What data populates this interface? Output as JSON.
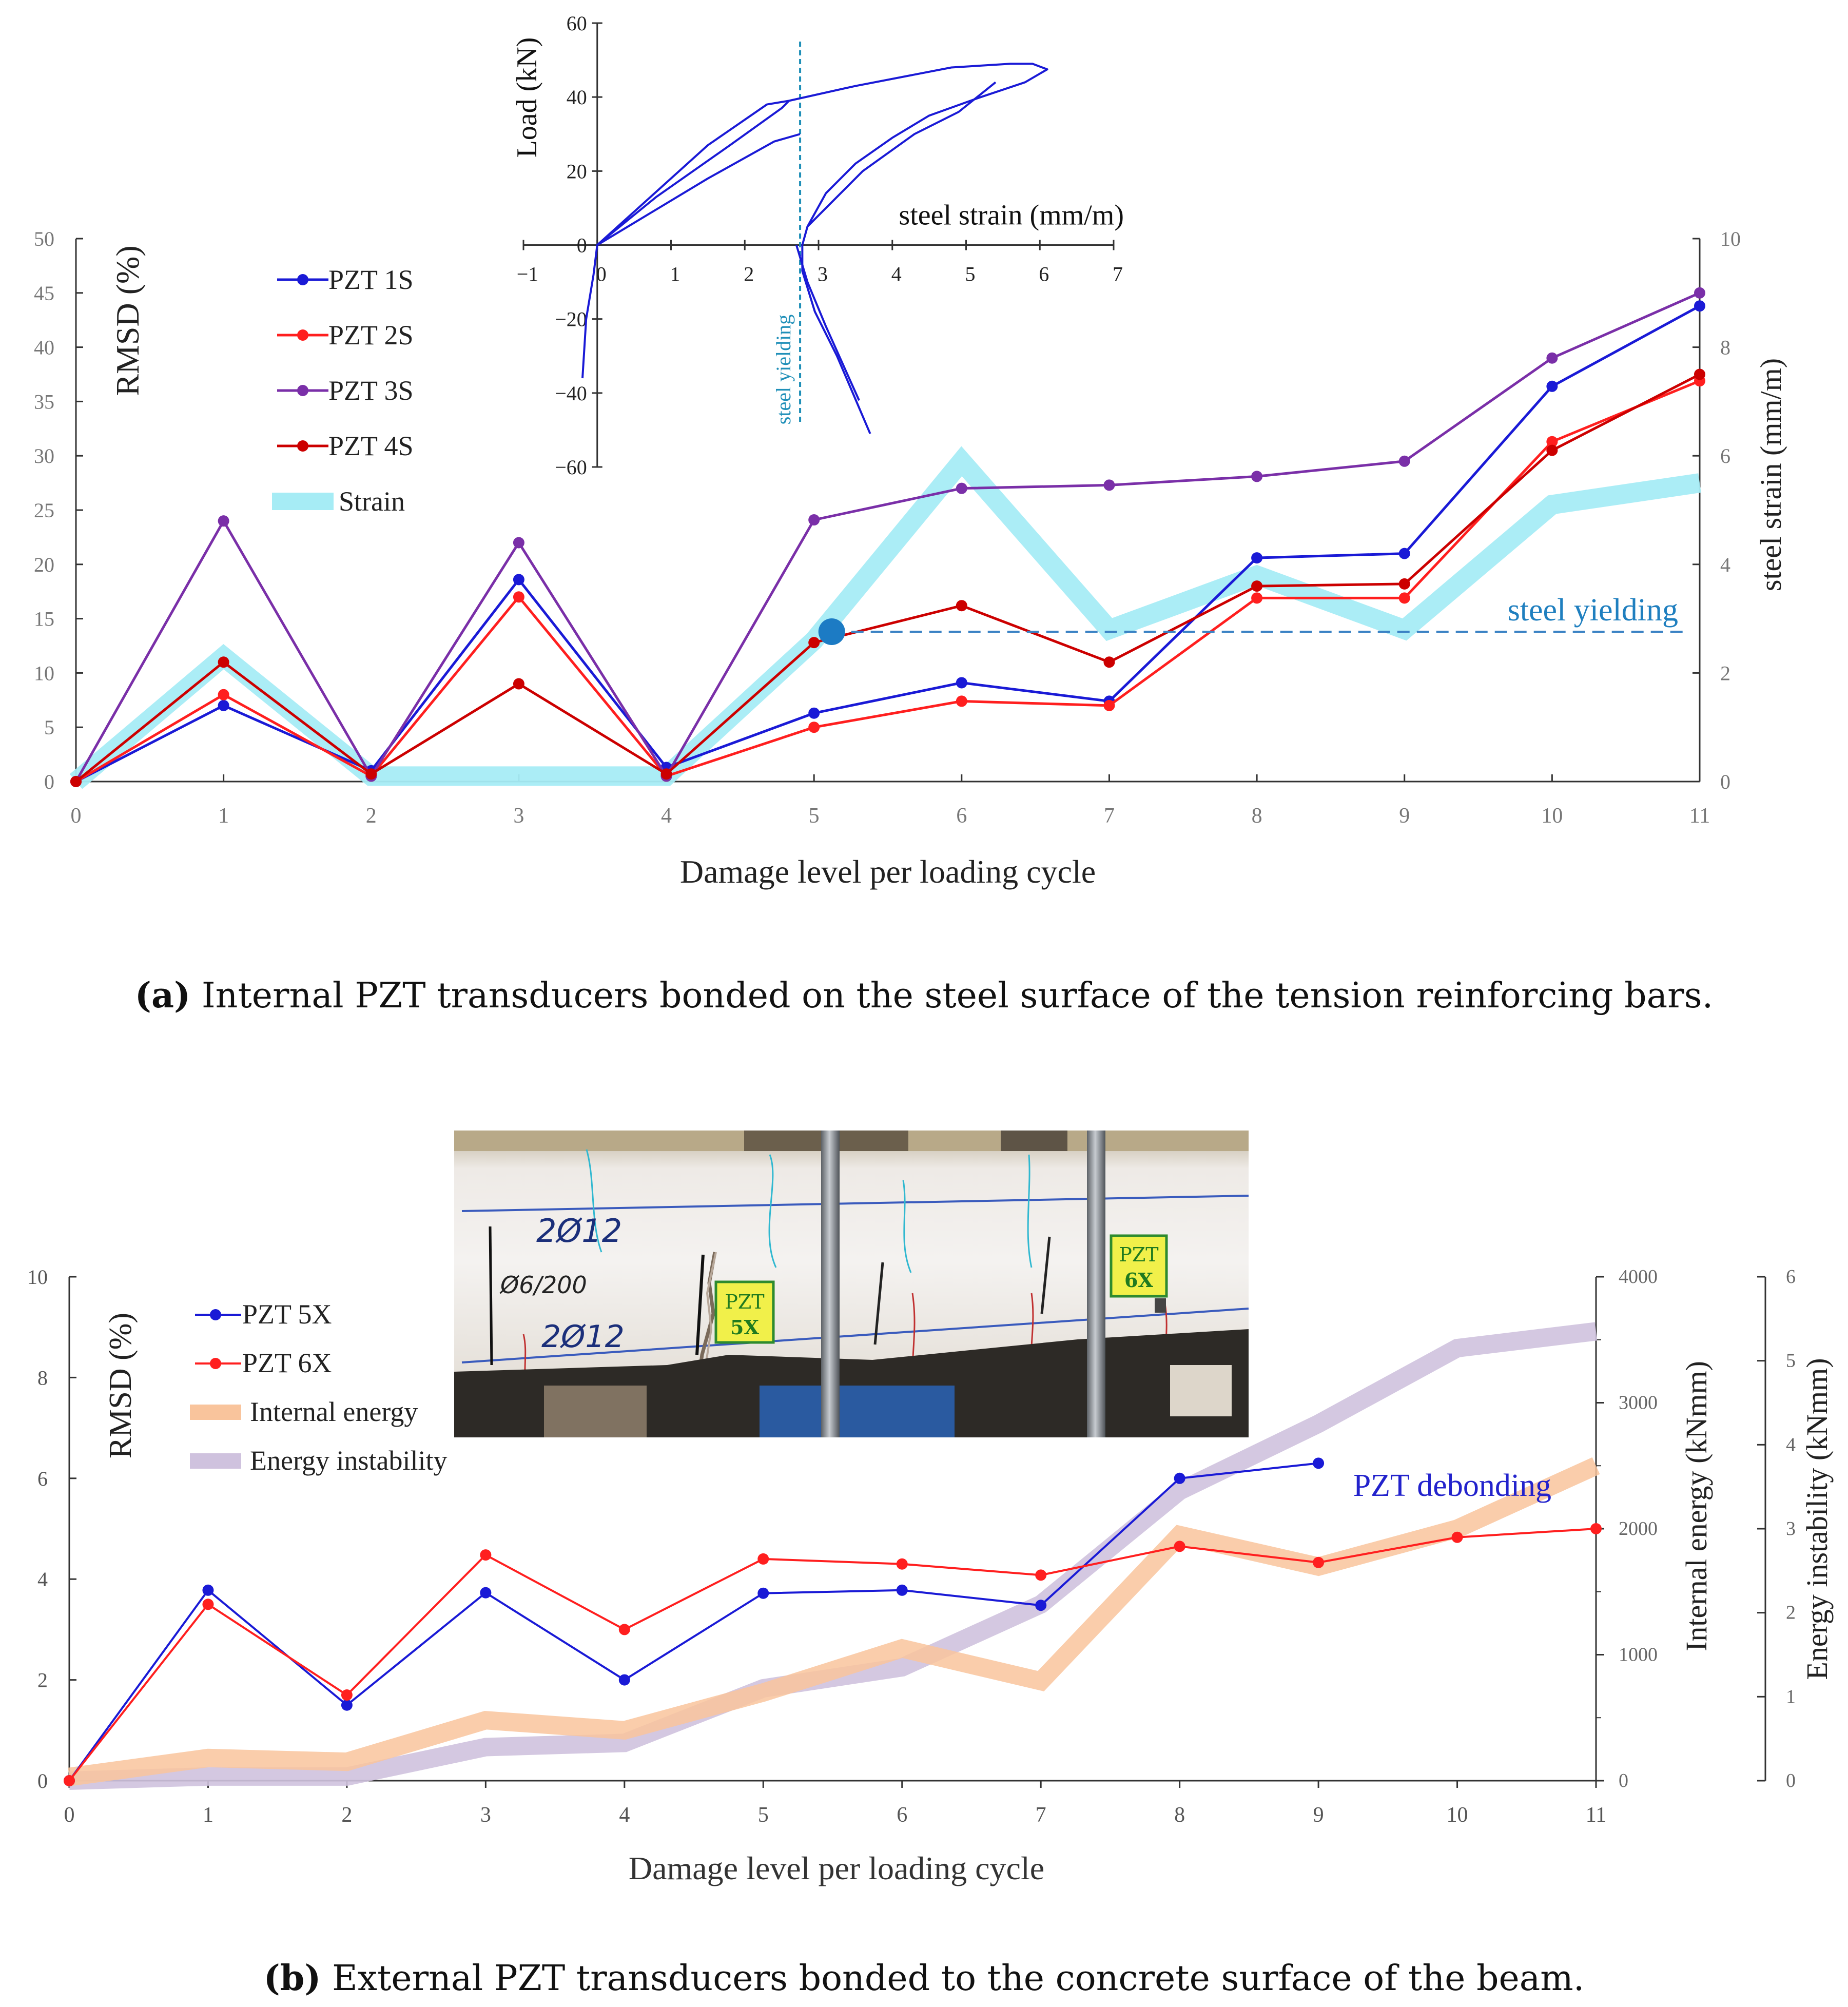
{
  "chart_data": [
    {
      "id": "a",
      "type": "line",
      "x": [
        0,
        1,
        2,
        3,
        4,
        5,
        6,
        7,
        8,
        9,
        10,
        11
      ],
      "xlabel": "Damage level per loading cycle",
      "ylabel": "RMSD (%)",
      "y2label": "steel strain (mm/m)",
      "xlim": [
        0,
        11
      ],
      "ylim": [
        0,
        50
      ],
      "y2lim": [
        0,
        10
      ],
      "yticks": [
        0,
        5,
        10,
        15,
        20,
        25,
        30,
        35,
        40,
        45,
        50
      ],
      "y2ticks": [
        0,
        2,
        4,
        6,
        8,
        10
      ],
      "xticks": [
        0,
        1,
        2,
        3,
        4,
        5,
        6,
        7,
        8,
        9,
        10,
        11
      ],
      "legend_position": "top-left",
      "grid": false,
      "series": [
        {
          "name": "PZT 1S",
          "color": "#1a1ad6",
          "values": [
            0,
            7,
            1,
            18.6,
            1.3,
            6.3,
            9.1,
            7.4,
            20.6,
            21,
            36.4,
            43.8
          ]
        },
        {
          "name": "PZT 2S",
          "color": "#ff1f1f",
          "values": [
            0,
            8,
            0.5,
            17,
            0.5,
            5,
            7.4,
            7,
            16.9,
            16.9,
            31.3,
            36.9
          ]
        },
        {
          "name": "PZT 3S",
          "color": "#7a2fa8",
          "values": [
            0,
            24,
            0.5,
            22,
            0.5,
            24.1,
            27,
            27.3,
            28.1,
            29.5,
            39,
            45
          ]
        },
        {
          "name": "PZT 4S",
          "color": "#cc0000",
          "values": [
            0,
            11,
            0.7,
            9,
            0.7,
            12.8,
            16.2,
            11,
            18,
            18.2,
            30.5,
            37.5
          ]
        },
        {
          "name": "Strain",
          "color": "#a6ecf5",
          "axis": "y2",
          "values": [
            0,
            2.3,
            0.1,
            0.1,
            0.1,
            2.6,
            5.9,
            2.8,
            3.8,
            2.8,
            5.1,
            5.5
          ]
        }
      ],
      "yield_marker": {
        "x": 5.12,
        "y2": 2.76,
        "label": "steel yielding",
        "color": "#1f7fbf"
      },
      "inset": {
        "type": "line",
        "xlabel": "steel strain (mm/m)",
        "ylabel": "Load (kN)",
        "xlim": [
          -1,
          7
        ],
        "ylim": [
          -60,
          60
        ],
        "xticks": [
          -1,
          0,
          1,
          2,
          3,
          4,
          5,
          6,
          7
        ],
        "xtick_labels": [
          "−1",
          "0",
          "1",
          "2",
          "3",
          "4",
          "5",
          "6",
          "7"
        ],
        "yticks": [
          -60,
          -40,
          -20,
          0,
          20,
          40,
          60
        ],
        "ytick_labels": [
          "−60",
          "−40",
          "−20",
          "0",
          "20",
          "40",
          "60"
        ],
        "yield_x": 2.75,
        "yield_label": "steel yielding",
        "color": "#1a1ad6",
        "yield_color": "#1f8fb8",
        "curves": [
          [
            [
              -0.2,
              -36
            ],
            [
              -0.15,
              -20
            ],
            [
              -0.05,
              -8
            ],
            [
              0,
              0
            ],
            [
              0.5,
              9
            ],
            [
              1.5,
              27
            ],
            [
              2.3,
              38
            ],
            [
              2.6,
              39
            ],
            [
              3.5,
              43
            ],
            [
              4.8,
              48
            ],
            [
              5.6,
              49
            ],
            [
              5.9,
              49
            ],
            [
              6.1,
              47.5
            ],
            [
              5.8,
              44
            ],
            [
              5.2,
              40
            ],
            [
              4.5,
              35
            ],
            [
              4,
              29
            ],
            [
              3.5,
              22
            ],
            [
              3.1,
              14
            ],
            [
              2.85,
              5
            ],
            [
              2.78,
              0
            ],
            [
              2.78,
              -7
            ],
            [
              2.95,
              -18
            ],
            [
              3.25,
              -30
            ],
            [
              3.7,
              -51
            ]
          ],
          [
            [
              0,
              0
            ],
            [
              0.8,
              13
            ],
            [
              1.8,
              27
            ],
            [
              2.5,
              37
            ],
            [
              2.6,
              39
            ]
          ],
          [
            [
              0,
              0
            ],
            [
              0.5,
              6
            ],
            [
              1.5,
              18
            ],
            [
              2.4,
              28
            ],
            [
              2.75,
              30
            ]
          ],
          [
            [
              2.7,
              0
            ],
            [
              2.85,
              -10
            ],
            [
              3.1,
              -22
            ],
            [
              3.55,
              -42
            ]
          ],
          [
            [
              2.85,
              5
            ],
            [
              3.6,
              20
            ],
            [
              4.3,
              30
            ],
            [
              4.9,
              36
            ],
            [
              5.4,
              44
            ]
          ]
        ]
      },
      "caption": {
        "label": "(a)",
        "text": " Internal PZT transducers bonded on the steel surface of the tension reinforcing bars."
      }
    },
    {
      "id": "b",
      "type": "line",
      "x": [
        0,
        1,
        2,
        3,
        4,
        5,
        6,
        7,
        8,
        9,
        10,
        11
      ],
      "xlabel": "Damage level per loading cycle",
      "ylabel": "RMSD (%)",
      "y2label": "Internal energy (kNmm)",
      "y3label": "Energy instability  (kNmm)",
      "xlim": [
        0,
        11
      ],
      "ylim": [
        0,
        10
      ],
      "y2lim": [
        0,
        4000
      ],
      "y3lim": [
        0,
        6
      ],
      "yticks": [
        0,
        2,
        4,
        6,
        8,
        10
      ],
      "y2ticks": [
        0,
        1000,
        2000,
        3000,
        4000
      ],
      "y3ticks": [
        0,
        1,
        2,
        3,
        4,
        5,
        6
      ],
      "xticks": [
        0,
        1,
        2,
        3,
        4,
        5,
        6,
        7,
        8,
        9,
        10,
        11
      ],
      "legend_position": "top-left",
      "grid": false,
      "series": [
        {
          "name": "PZT 5X",
          "color": "#1a1ad6",
          "x": [
            0,
            1,
            2,
            3,
            4,
            5,
            6,
            7,
            8,
            9
          ],
          "values": [
            0,
            3.78,
            1.5,
            3.73,
            2,
            3.72,
            3.78,
            3.48,
            6,
            6.3
          ]
        },
        {
          "name": "PZT 6X",
          "color": "#ff1f1f",
          "values": [
            0,
            3.5,
            1.7,
            4.48,
            3,
            4.4,
            4.3,
            4.08,
            4.65,
            4.33,
            4.83,
            5
          ]
        },
        {
          "name": "Internal energy",
          "color": "#f9c49c",
          "axis": "y2",
          "values": [
            30,
            180,
            150,
            480,
            400,
            700,
            1050,
            790,
            1950,
            1700,
            2000,
            2500
          ]
        },
        {
          "name": "Energy instability",
          "color": "#cfc2de",
          "axis": "y3",
          "values": [
            0,
            0.05,
            0.05,
            0.4,
            0.45,
            1.1,
            1.35,
            2.1,
            3.45,
            4.25,
            5.15,
            5.35
          ]
        }
      ],
      "annotation": {
        "text": "PZT debonding",
        "color": "#2222cc",
        "x": 9.25,
        "y": 5.65
      },
      "photo": {
        "labels": [
          {
            "text": "2Ø12",
            "color": "#1b2f7a"
          },
          {
            "text": "Ø6/200",
            "color": "#222222"
          },
          {
            "text": "2Ø12",
            "color": "#1b2f7a"
          }
        ],
        "tags": [
          {
            "line1": "PZT",
            "line2": "5X"
          },
          {
            "line1": "PZT",
            "line2": "6X"
          }
        ]
      },
      "caption": {
        "label": "(b)",
        "text": " External PZT transducers bonded to the concrete surface of the beam."
      }
    }
  ]
}
